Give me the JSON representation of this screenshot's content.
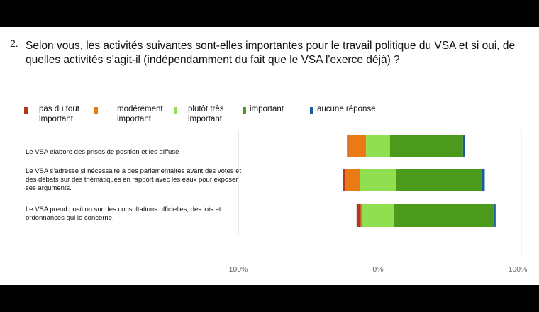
{
  "question": {
    "number": "2.",
    "text": "Selon vous, les activités suivantes sont-elles importantes pour le travail politique du VSA et si oui, de quelles activités s’agit-il (indépendamment du fait que le VSA l'exerce déjà) ?"
  },
  "chart_data": {
    "type": "bar",
    "orientation": "horizontal",
    "stacked": "diverging",
    "categories": [
      "Le VSA élabore des prises de position et les diffuse",
      "Le VSA s’adresse si nécessaire à des parlementaires avant des votes  et des débats sur des thématiques en rapport avec les eaux pour exposer ses arguments.",
      "Le VSA prend position sur des consultations officielles, des lois et ordonnances qui le concerne."
    ],
    "series": [
      {
        "name": "pas du tout\nimportant",
        "color": "#B5361A",
        "values": [
          1,
          1.5,
          3
        ]
      },
      {
        "name": "modérément\nimportant",
        "color": "#EA7A14",
        "values": [
          12.5,
          10.5,
          1
        ]
      },
      {
        "name": "plutôt très\nimportant",
        "color": "#8FDF50",
        "values": [
          17,
          26,
          22.5
        ]
      },
      {
        "name": "important",
        "color": "#4B9A1B",
        "values": [
          52,
          61,
          71
        ]
      },
      {
        "name": "aucune réponse",
        "color": "#1A5C9E",
        "values": [
          1.5,
          2,
          1.5
        ]
      }
    ],
    "negative_series": [
      0,
      1
    ],
    "neutral_split_series": 2,
    "xlim": [
      -100,
      100
    ],
    "x_ticks": [
      "100%",
      "0%",
      "100%"
    ],
    "legend_position": "top",
    "grid": false
  }
}
